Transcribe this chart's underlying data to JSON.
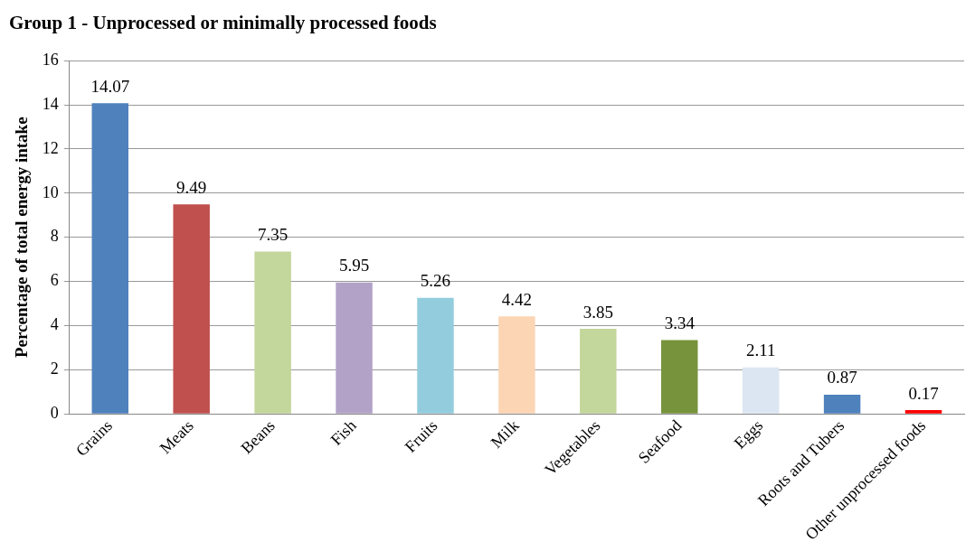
{
  "chart_data": {
    "type": "bar",
    "title": "Group 1 - Unprocessed or minimally processed foods",
    "ylabel": "Percentage of total energy intake",
    "categories": [
      "Grains",
      "Meats",
      "Beans",
      "Fish",
      "Fruits",
      "Milk",
      "Vegetables",
      "Seafood",
      "Eggs",
      "Roots and Tubers",
      "Other unprocessed foods"
    ],
    "values": [
      14.07,
      9.49,
      7.35,
      5.95,
      5.26,
      4.42,
      3.85,
      3.34,
      2.11,
      0.87,
      0.17
    ],
    "colors": [
      "#4f81bd",
      "#c0504d",
      "#c3d69b",
      "#b2a2c7",
      "#93cddd",
      "#fcd5b5",
      "#c3d69b",
      "#77933c",
      "#dce6f2",
      "#4f81bd",
      "#ff0000"
    ],
    "ylim": [
      0,
      16
    ],
    "yticks": [
      0,
      2,
      4,
      6,
      8,
      10,
      12,
      14,
      16
    ],
    "grid": "y",
    "data_labels": true,
    "legend": false
  }
}
